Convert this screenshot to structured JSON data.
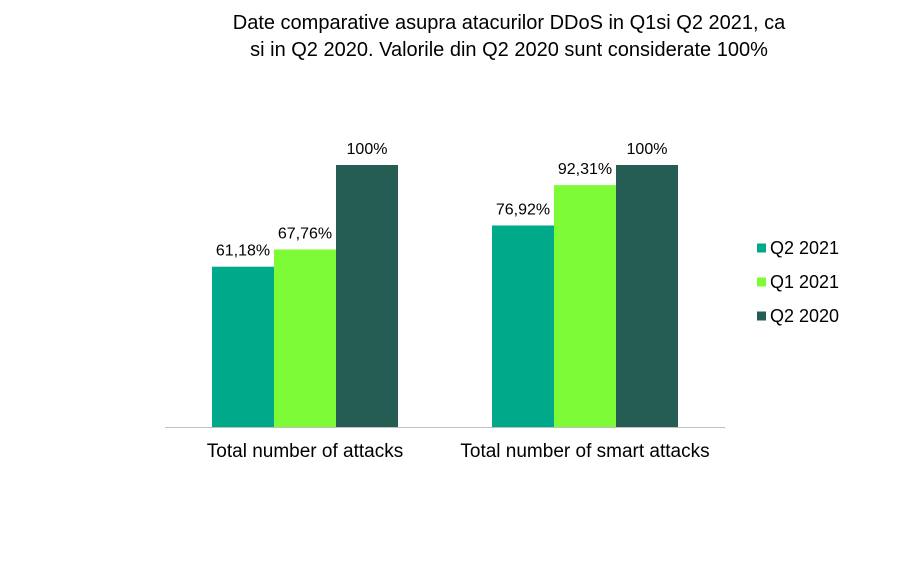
{
  "chart_data": {
    "type": "bar",
    "title": "Date comparative asupra atacurilor DDoS in Q1si Q2 2021, ca si in Q2 2020. Valorile din Q2 2020 sunt considerate 100%",
    "categories": [
      "Total number of attacks",
      "Total number of smart attacks"
    ],
    "series": [
      {
        "name": "Q2 2021",
        "values": [
          61.18,
          76.92
        ],
        "labels": [
          "61,18%",
          "76,92%"
        ],
        "color": "#00A98A"
      },
      {
        "name": "Q1 2021",
        "values": [
          67.76,
          92.31
        ],
        "labels": [
          "67,76%",
          "92,31%"
        ],
        "color": "#7CFB36"
      },
      {
        "name": "Q2 2020",
        "values": [
          100,
          100
        ],
        "labels": [
          "100%",
          "100%"
        ],
        "color": "#255C53"
      }
    ],
    "ylim": [
      0,
      100
    ],
    "grid": false,
    "legend_position": "right",
    "axis_color": "#BFBFBF"
  }
}
